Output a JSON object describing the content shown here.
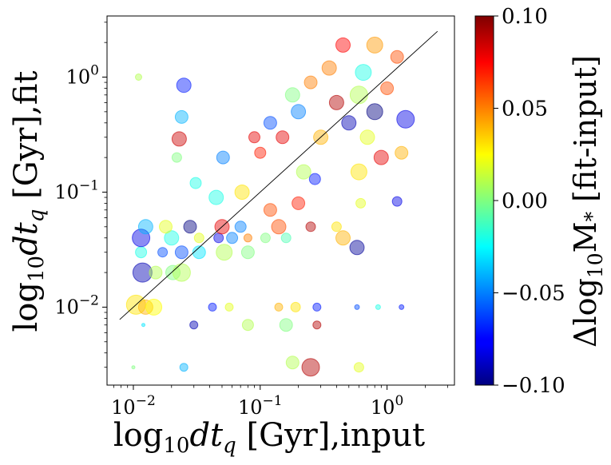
{
  "chart_data": {
    "type": "scatter",
    "title": "",
    "xlabel": "log10 dt_q [Gyr],input",
    "ylabel": "log10 dt_q [Gyr],fit",
    "xscale": "log",
    "yscale": "log",
    "xlim": [
      0.0062,
      3.4
    ],
    "ylim": [
      0.0021,
      3.4
    ],
    "x_ticks": [
      {
        "value": 0.01,
        "mant": "10",
        "exp": "−2"
      },
      {
        "value": 0.1,
        "mant": "10",
        "exp": "−1"
      },
      {
        "value": 1,
        "mant": "10",
        "exp": "0"
      }
    ],
    "y_ticks": [
      {
        "value": 0.01,
        "mant": "10",
        "exp": "−2"
      },
      {
        "value": 0.1,
        "mant": "10",
        "exp": "−1"
      },
      {
        "value": 1,
        "mant": "10",
        "exp": "0"
      }
    ],
    "one_to_one_line": {
      "from": 0.0078,
      "to": 2.5,
      "color": "#000000"
    },
    "colorbar": {
      "label": "Δlog10M* [fit-input]",
      "colormap": "jet",
      "range": [
        -0.1,
        0.1
      ],
      "ticks": [
        {
          "value": 0.1,
          "label": "0.10"
        },
        {
          "value": 0.05,
          "label": "0.05"
        },
        {
          "value": 0.0,
          "label": "0.00"
        },
        {
          "value": -0.05,
          "label": "−0.05"
        },
        {
          "value": -0.1,
          "label": "−0.10"
        }
      ]
    },
    "points": [
      {
        "x": 0.0105,
        "y": 0.0105,
        "c": 0.03,
        "s": 12
      },
      {
        "x": 0.0125,
        "y": 0.01,
        "c": 0.04,
        "s": 9
      },
      {
        "x": 0.0145,
        "y": 0.01,
        "c": 0.025,
        "s": 10
      },
      {
        "x": 0.0118,
        "y": 0.02,
        "c": -0.09,
        "s": 12
      },
      {
        "x": 0.015,
        "y": 0.02,
        "c": 0.01,
        "s": 8
      },
      {
        "x": 0.0205,
        "y": 0.02,
        "c": 0.0,
        "s": 9
      },
      {
        "x": 0.024,
        "y": 0.02,
        "c": 0.01,
        "s": 11
      },
      {
        "x": 0.0115,
        "y": 0.03,
        "c": -0.02,
        "s": 7
      },
      {
        "x": 0.017,
        "y": 0.03,
        "c": -0.06,
        "s": 6
      },
      {
        "x": 0.024,
        "y": 0.03,
        "c": -0.06,
        "s": 8
      },
      {
        "x": 0.033,
        "y": 0.03,
        "c": -0.03,
        "s": 8
      },
      {
        "x": 0.052,
        "y": 0.03,
        "c": 0.01,
        "s": 10
      },
      {
        "x": 0.08,
        "y": 0.03,
        "c": 0.0,
        "s": 8
      },
      {
        "x": 0.0115,
        "y": 0.04,
        "c": -0.08,
        "s": 11
      },
      {
        "x": 0.02,
        "y": 0.04,
        "c": -0.02,
        "s": 9
      },
      {
        "x": 0.033,
        "y": 0.04,
        "c": 0.02,
        "s": 6
      },
      {
        "x": 0.047,
        "y": 0.04,
        "c": -0.08,
        "s": 6
      },
      {
        "x": 0.06,
        "y": 0.04,
        "c": -0.05,
        "s": 7
      },
      {
        "x": 0.08,
        "y": 0.04,
        "c": 0.05,
        "s": 5
      },
      {
        "x": 0.11,
        "y": 0.04,
        "c": 0.0,
        "s": 6
      },
      {
        "x": 0.16,
        "y": 0.04,
        "c": -0.01,
        "s": 6
      },
      {
        "x": 0.45,
        "y": 0.04,
        "c": 0.04,
        "s": 9
      },
      {
        "x": 0.58,
        "y": 0.033,
        "c": -0.095,
        "s": 9
      },
      {
        "x": 0.0125,
        "y": 0.05,
        "c": -0.04,
        "s": 9
      },
      {
        "x": 0.018,
        "y": 0.05,
        "c": 0.02,
        "s": 8
      },
      {
        "x": 0.028,
        "y": 0.05,
        "c": -0.1,
        "s": 8
      },
      {
        "x": 0.05,
        "y": 0.05,
        "c": 0.08,
        "s": 9
      },
      {
        "x": 0.07,
        "y": 0.05,
        "c": -0.05,
        "s": 7
      },
      {
        "x": 0.14,
        "y": 0.05,
        "c": 0.06,
        "s": 9
      },
      {
        "x": 0.25,
        "y": 0.05,
        "c": 0.09,
        "s": 6
      },
      {
        "x": 0.4,
        "y": 0.05,
        "c": 0.03,
        "s": 6
      },
      {
        "x": 0.12,
        "y": 0.07,
        "c": 0.06,
        "s": 8
      },
      {
        "x": 0.045,
        "y": 0.09,
        "c": -0.02,
        "s": 9
      },
      {
        "x": 0.2,
        "y": 0.08,
        "c": 0.07,
        "s": 8
      },
      {
        "x": 0.62,
        "y": 0.08,
        "c": 0.02,
        "s": 6
      },
      {
        "x": 1.2,
        "y": 0.083,
        "c": -0.08,
        "s": 6
      },
      {
        "x": 0.031,
        "y": 0.12,
        "c": -0.02,
        "s": 7
      },
      {
        "x": 0.072,
        "y": 0.1,
        "c": 0.03,
        "s": 9
      },
      {
        "x": 0.27,
        "y": 0.13,
        "c": -0.07,
        "s": 7
      },
      {
        "x": 0.022,
        "y": 0.2,
        "c": 0.0,
        "s": 6
      },
      {
        "x": 0.051,
        "y": 0.2,
        "c": -0.05,
        "s": 8
      },
      {
        "x": 0.1,
        "y": 0.22,
        "c": 0.07,
        "s": 7
      },
      {
        "x": 0.023,
        "y": 0.29,
        "c": 0.085,
        "s": 9
      },
      {
        "x": 0.025,
        "y": 0.85,
        "c": -0.07,
        "s": 9
      },
      {
        "x": 0.024,
        "y": 0.45,
        "c": -0.04,
        "s": 8
      },
      {
        "x": 0.011,
        "y": 1.0,
        "c": 0.01,
        "s": 4
      },
      {
        "x": 0.15,
        "y": 0.3,
        "c": 0.08,
        "s": 8
      },
      {
        "x": 0.2,
        "y": 0.5,
        "c": -0.05,
        "s": 9
      },
      {
        "x": 0.3,
        "y": 0.3,
        "c": 0.04,
        "s": 9
      },
      {
        "x": 0.4,
        "y": 0.6,
        "c": 0.09,
        "s": 9
      },
      {
        "x": 0.5,
        "y": 0.4,
        "c": -0.09,
        "s": 9
      },
      {
        "x": 0.6,
        "y": 0.7,
        "c": 0.01,
        "s": 11
      },
      {
        "x": 0.7,
        "y": 0.3,
        "c": 0.02,
        "s": 9
      },
      {
        "x": 0.8,
        "y": 0.5,
        "c": -0.1,
        "s": 10
      },
      {
        "x": 1.0,
        "y": 0.8,
        "c": 0.06,
        "s": 8
      },
      {
        "x": 1.2,
        "y": 1.5,
        "c": 0.06,
        "s": 8
      },
      {
        "x": 1.4,
        "y": 0.43,
        "c": -0.08,
        "s": 11
      },
      {
        "x": 1.3,
        "y": 0.22,
        "c": 0.04,
        "s": 8
      },
      {
        "x": 0.9,
        "y": 0.2,
        "c": 0.08,
        "s": 9
      },
      {
        "x": 0.6,
        "y": 0.15,
        "c": 0.03,
        "s": 10
      },
      {
        "x": 0.35,
        "y": 1.2,
        "c": 0.05,
        "s": 9
      },
      {
        "x": 0.45,
        "y": 1.9,
        "c": 0.075,
        "s": 9
      },
      {
        "x": 0.8,
        "y": 1.9,
        "c": 0.045,
        "s": 10
      },
      {
        "x": 0.12,
        "y": 0.4,
        "c": -0.06,
        "s": 8
      },
      {
        "x": 0.18,
        "y": 0.7,
        "c": 0.0,
        "s": 9
      },
      {
        "x": 0.25,
        "y": 0.9,
        "c": 0.05,
        "s": 8
      },
      {
        "x": 0.09,
        "y": 0.3,
        "c": 0.08,
        "s": 7
      },
      {
        "x": 0.65,
        "y": 1.1,
        "c": -0.02,
        "s": 10
      },
      {
        "x": 0.22,
        "y": 0.15,
        "c": 0.01,
        "s": 9
      },
      {
        "x": 0.18,
        "y": 0.0033,
        "c": 0.01,
        "s": 8
      },
      {
        "x": 0.25,
        "y": 0.003,
        "c": 0.09,
        "s": 11
      },
      {
        "x": 0.6,
        "y": 0.003,
        "c": 0.02,
        "s": 6
      },
      {
        "x": 0.025,
        "y": 0.003,
        "c": -0.04,
        "s": 5
      },
      {
        "x": 0.01,
        "y": 0.003,
        "c": 0.0,
        "s": 2
      },
      {
        "x": 0.012,
        "y": 0.007,
        "c": -0.03,
        "s": 2
      },
      {
        "x": 0.16,
        "y": 0.007,
        "c": 0.0,
        "s": 8
      },
      {
        "x": 0.03,
        "y": 0.007,
        "c": -0.09,
        "s": 5
      },
      {
        "x": 0.08,
        "y": 0.007,
        "c": 0.01,
        "s": 7
      },
      {
        "x": 0.28,
        "y": 0.007,
        "c": 0.09,
        "s": 5
      },
      {
        "x": 0.28,
        "y": 0.01,
        "c": -0.07,
        "s": 5
      },
      {
        "x": 1.3,
        "y": 0.01,
        "c": -0.07,
        "s": 3
      },
      {
        "x": 0.58,
        "y": 0.01,
        "c": -0.06,
        "s": 3
      },
      {
        "x": 0.042,
        "y": 0.01,
        "c": -0.07,
        "s": 5
      },
      {
        "x": 0.19,
        "y": 0.01,
        "c": 0.03,
        "s": 6
      },
      {
        "x": 0.14,
        "y": 0.01,
        "c": 0.04,
        "s": 5
      },
      {
        "x": 0.057,
        "y": 0.01,
        "c": 0.02,
        "s": 5
      },
      {
        "x": 0.85,
        "y": 0.01,
        "c": -0.02,
        "s": 3
      }
    ]
  }
}
